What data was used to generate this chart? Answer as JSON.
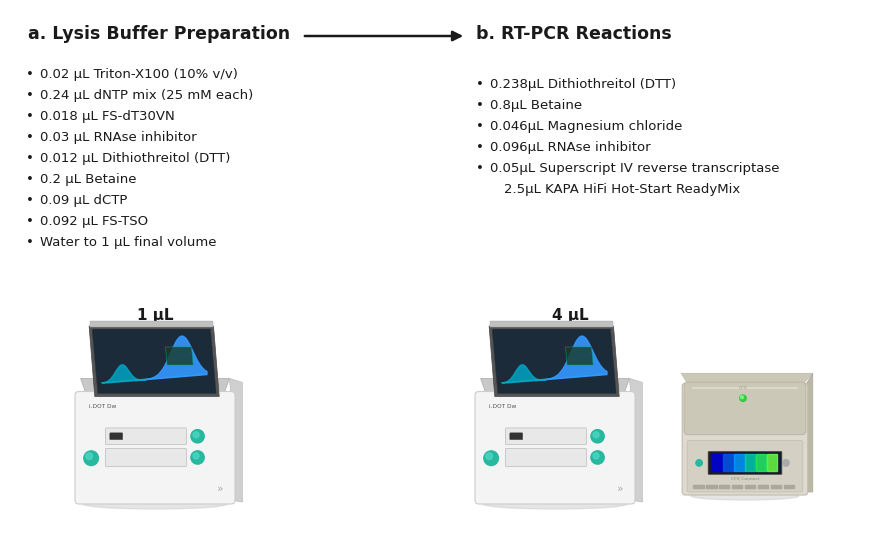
{
  "title_a": "a. Lysis Buffer Preparation",
  "title_b": "b. RT-PCR Reactions",
  "lysis_items": [
    "0.02 μL Triton-X100 (10% v/v)",
    "0.24 μL dNTP mix (25 mM each)",
    "0.018 μL FS-dT30VN",
    "0.03 μL RNAse inhibitor",
    "0.012 μL Dithiothreitol (DTT)",
    "0.2 μL Betaine",
    "0.09 μL dCTP",
    "0.092 μL FS-TSO",
    "Water to 1 μL final volume"
  ],
  "rtpcr_items": [
    "0.238μL Dithiothreitol (DTT)",
    "0.8μL Betaine",
    "0.046μL Magnesium chloride",
    "0.096μL RNAse inhibitor",
    "0.05μL Superscript IV reverse transcriptase",
    "  2.5μL KAPA HiFi Hot-Start ReadyMix"
  ],
  "volume_a": "1 μL",
  "volume_b": "4 μL",
  "bg_color": "#ffffff",
  "text_color": "#1a1a1a",
  "title_fontsize": 12.5,
  "body_fontsize": 9.5,
  "volume_fontsize": 11
}
